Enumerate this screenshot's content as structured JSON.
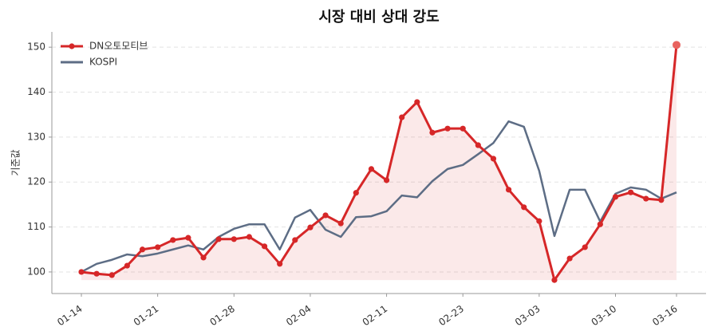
{
  "chart_data": {
    "type": "line",
    "title": "시장 대비 상대 강도",
    "y_label": "기준값",
    "categories": [
      "01-14",
      null,
      null,
      null,
      null,
      "01-21",
      null,
      null,
      null,
      null,
      "01-28",
      null,
      null,
      null,
      null,
      "02-04",
      null,
      null,
      null,
      null,
      "02-11",
      null,
      null,
      null,
      null,
      "02-23",
      null,
      null,
      null,
      null,
      "03-03",
      null,
      null,
      null,
      null,
      "03-10",
      null,
      null,
      null,
      "03-16"
    ],
    "series": [
      {
        "name": "DN오토모티브",
        "color": "#d62728",
        "fill": true,
        "markers": true,
        "values": [
          100.0,
          99.6,
          99.3,
          101.4,
          105.0,
          105.5,
          107.1,
          107.6,
          103.2,
          107.3,
          107.3,
          107.8,
          105.7,
          101.8,
          107.1,
          109.9,
          112.6,
          110.8,
          117.6,
          122.9,
          120.4,
          134.4,
          137.8,
          131.0,
          131.9,
          131.9,
          128.2,
          125.2,
          118.3,
          114.4,
          111.3,
          98.2,
          103.0,
          105.5,
          110.6,
          116.7,
          117.7,
          116.3,
          116.0,
          150.5
        ]
      },
      {
        "name": "KOSPI",
        "color": "#5d6d85",
        "fill": false,
        "markers": false,
        "values": [
          100.0,
          101.8,
          102.7,
          103.9,
          103.5,
          104.1,
          105.0,
          105.9,
          105.0,
          107.8,
          109.6,
          110.6,
          110.6,
          105.0,
          112.1,
          113.8,
          109.4,
          107.8,
          112.2,
          112.4,
          113.5,
          117.0,
          116.6,
          120.2,
          122.9,
          123.8,
          126.2,
          128.7,
          133.5,
          132.3,
          122.5,
          108.0,
          118.3,
          118.3,
          111.2,
          117.4,
          118.8,
          118.3,
          116.3,
          117.7
        ]
      }
    ],
    "ylim": [
      95.2,
      153.4
    ],
    "yticks": [
      100,
      110,
      120,
      130,
      140,
      150
    ],
    "grid": true,
    "legend": "upper left"
  }
}
